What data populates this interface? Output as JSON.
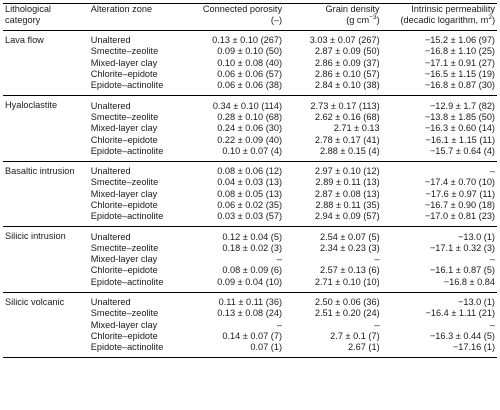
{
  "headers": {
    "category_line1": "Lithological",
    "category_line2": "category",
    "zone": "Alteration zone",
    "porosity_line1": "Connected porosity",
    "porosity_line2": "(–)",
    "density_line1": "Grain density",
    "density_line2a": "(g cm",
    "density_sup": "−3",
    "density_line2b": ")",
    "perm_line1": "Intrinsic permeability",
    "perm_line2a": "(decadic logarithm, m",
    "perm_sup": "2",
    "perm_line2b": ")"
  },
  "groups": [
    {
      "category": "Lava flow",
      "rows": [
        {
          "zone": "Unaltered",
          "porosity": "0.13 ± 0.10 (267)",
          "density": "3.03 ± 0.07 (267)",
          "perm": "−15.2 ± 1.06 (97)"
        },
        {
          "zone": "Smectite–zeolite",
          "porosity": "0.09 ± 0.10 (50)",
          "density": "2.87 ± 0.09 (50)",
          "perm": "−16.8 ± 1.10 (25)"
        },
        {
          "zone": "Mixed-layer clay",
          "porosity": "0.10 ± 0.08 (40)",
          "density": "2.86 ± 0.09 (37)",
          "perm": "−17.1 ± 0.91 (27)"
        },
        {
          "zone": "Chlorite–epidote",
          "porosity": "0.06 ± 0.06 (57)",
          "density": "2.86 ± 0.10 (57)",
          "perm": "−16.5 ± 1.15 (19)"
        },
        {
          "zone": "Epidote–actinolite",
          "porosity": "0.06 ± 0.06 (38)",
          "density": "2.84 ± 0.10 (38)",
          "perm": "−16.8 ± 0.87 (30)"
        }
      ]
    },
    {
      "category": "Hyaloclastite",
      "rows": [
        {
          "zone": "Unaltered",
          "porosity": "0.34 ± 0.10 (114)",
          "density": "2.73 ± 0.17 (113)",
          "perm": "−12.9 ± 1.7 (82)"
        },
        {
          "zone": "Smectite–zeolite",
          "porosity": "0.28 ± 0.10 (68)",
          "density": "2.62 ± 0.16 (68)",
          "perm": "−13.8 ± 1.85 (50)"
        },
        {
          "zone": "Mixed-layer clay",
          "porosity": "0.24 ± 0.06 (30)",
          "density": "2.71 ± 0.13",
          "perm": "−16.3 ± 0.60 (14)"
        },
        {
          "zone": "Chlorite–epidote",
          "porosity": "0.22 ± 0.09 (40)",
          "density": "2.78 ± 0.17 (41)",
          "perm": "−16.1 ± 1.15 (11)"
        },
        {
          "zone": "Epidote–actinolite",
          "porosity": "0.10 ± 0.07 (4)",
          "density": "2.88 ± 0.15 (4)",
          "perm": "−15.7 ± 0.64 (4)"
        }
      ]
    },
    {
      "category": "Basaltic intrusion",
      "rows": [
        {
          "zone": "Unaltered",
          "porosity": "0.08 ± 0.06 (12)",
          "density": "2.97 ± 0.10 (12)",
          "perm": "–"
        },
        {
          "zone": "Smectite–zeolite",
          "porosity": "0.04 ± 0.03 (13)",
          "density": "2.89 ± 0.11 (13)",
          "perm": "−17.4 ± 0.70 (10)"
        },
        {
          "zone": "Mixed-layer clay",
          "porosity": "0.08 ± 0.05 (13)",
          "density": "2.87 ± 0.08 (13)",
          "perm": "−17.6 ± 0.97 (11)"
        },
        {
          "zone": "Chlorite–epidote",
          "porosity": "0.06 ± 0.02 (35)",
          "density": "2.88 ± 0.11 (35)",
          "perm": "−16.7 ± 0.90 (18)"
        },
        {
          "zone": "Epidote–actinolite",
          "porosity": "0.03 ± 0.03 (57)",
          "density": "2.94 ± 0.09 (57)",
          "perm": "−17.0 ± 0.81 (23)"
        }
      ]
    },
    {
      "category": "Silicic intrusion",
      "rows": [
        {
          "zone": "Unaltered",
          "porosity": "0.12 ± 0.04 (5)",
          "density": "2.54 ± 0.07 (5)",
          "perm": "−13.0 (1)"
        },
        {
          "zone": "Smectite–zeolite",
          "porosity": "0.18 ± 0.02 (3)",
          "density": "2.34 ± 0.23 (3)",
          "perm": "−17.1 ± 0.32 (3)"
        },
        {
          "zone": "Mixed-layer clay",
          "porosity": "–",
          "density": "–",
          "perm": "–"
        },
        {
          "zone": "Chlorite–epidote",
          "porosity": "0.08 ± 0.09 (6)",
          "density": "2.57 ± 0.13 (6)",
          "perm": "−16.1 ± 0.87 (5)"
        },
        {
          "zone": "Epidote–actinolite",
          "porosity": "0.09 ± 0.04 (10)",
          "density": "2.71 ± 0.10 (10)",
          "perm": "−16.8 ± 0.84"
        }
      ]
    },
    {
      "category": "Silicic volcanic",
      "rows": [
        {
          "zone": "Unaltered",
          "porosity": "0.11 ± 0.11 (36)",
          "density": "2.50 ± 0.06 (36)",
          "perm": "−13.0 (1)"
        },
        {
          "zone": "Smectite–zeolite",
          "porosity": "0.13 ± 0.08 (24)",
          "density": "2.51 ± 0.20 (24)",
          "perm": "−16.4 ± 1.11 (21)"
        },
        {
          "zone": "Mixed-layer clay",
          "porosity": "–",
          "density": "–",
          "perm": "–"
        },
        {
          "zone": "Chlorite–epidote",
          "porosity": "0.14 ± 0.07 (7)",
          "density": "2.7 ± 0.1 (7)",
          "perm": "−16.3 ± 0.44 (5)"
        },
        {
          "zone": "Epidote–actinolite",
          "porosity": "0.07 (1)",
          "density": "2.67 (1)",
          "perm": "−17.16 (1)"
        }
      ]
    }
  ]
}
